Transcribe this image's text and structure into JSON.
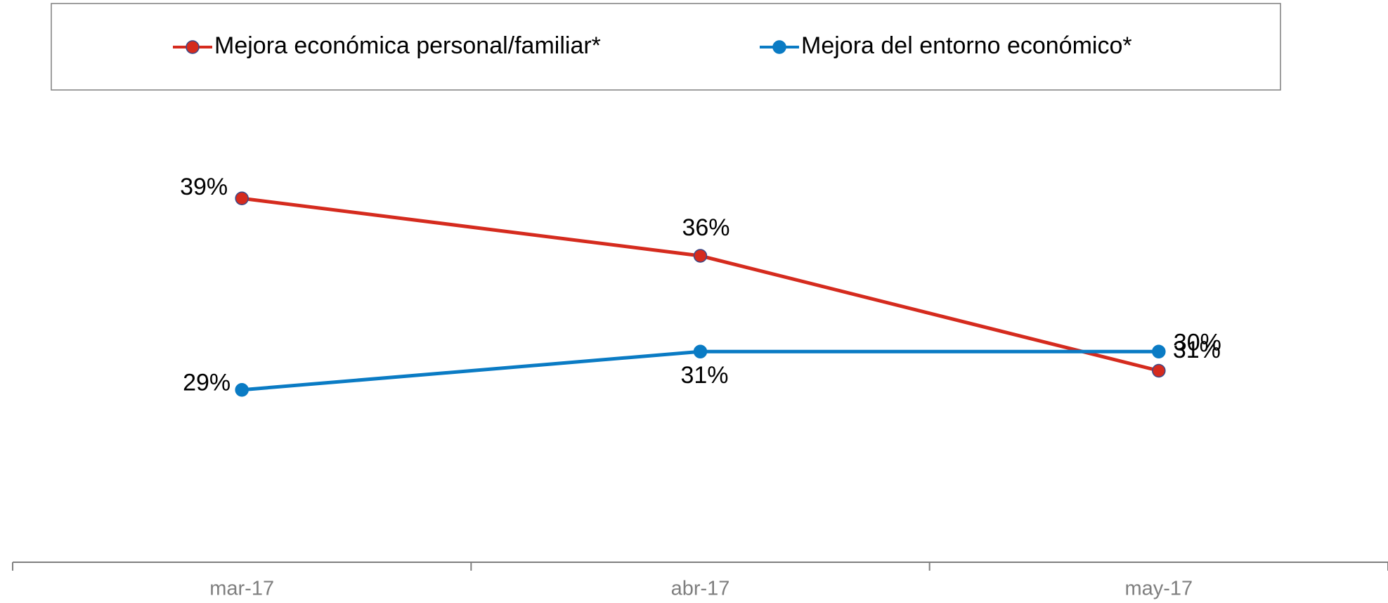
{
  "chart_data": {
    "type": "line",
    "categories": [
      "mar-17",
      "abr-17",
      "may-17"
    ],
    "series": [
      {
        "name": "Mejora económica personal/familiar*",
        "color": "#d52b1e",
        "values": [
          39,
          36,
          30
        ],
        "value_labels": [
          "39%",
          "36%",
          "30%"
        ]
      },
      {
        "name": "Mejora del entorno económico*",
        "color": "#0a7bc4",
        "values": [
          29,
          31,
          31
        ],
        "value_labels": [
          "29%",
          "31%",
          "31%"
        ]
      }
    ],
    "ylim": [
      20,
      44
    ],
    "legend": "top"
  }
}
